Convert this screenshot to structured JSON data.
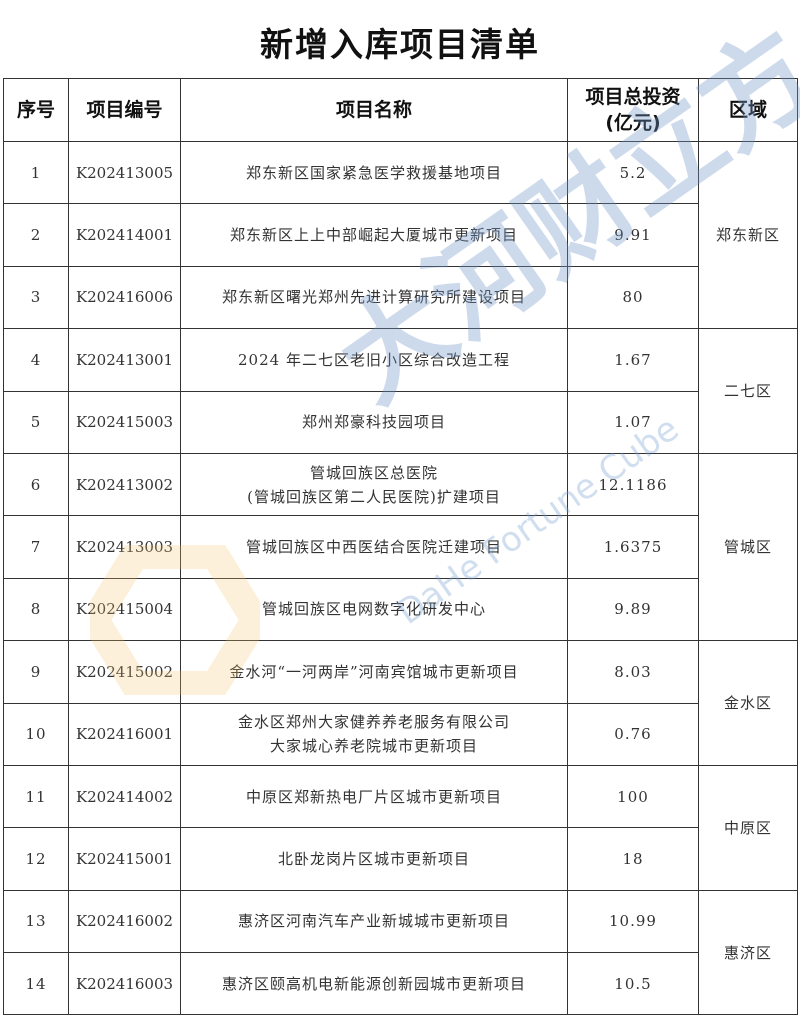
{
  "title": "新增入库项目清单",
  "headers": {
    "no": "序号",
    "code": "项目编号",
    "name": "项目名称",
    "invest_line1": "项目总投资",
    "invest_line2": "(亿元)",
    "region": "区域"
  },
  "rows": [
    {
      "no": "1",
      "code": "K202413005",
      "name": [
        "郑东新区国家紧急医学救援基地项目"
      ],
      "invest": "5.2"
    },
    {
      "no": "2",
      "code": "K202414001",
      "name": [
        "郑东新区上上中部崛起大厦城市更新项目"
      ],
      "invest": "9.91"
    },
    {
      "no": "3",
      "code": "K202416006",
      "name": [
        "郑东新区曙光郑州先进计算研究所建设项目"
      ],
      "invest": "80"
    },
    {
      "no": "4",
      "code": "K202413001",
      "name": [
        "2024 年二七区老旧小区综合改造工程"
      ],
      "invest": "1.67"
    },
    {
      "no": "5",
      "code": "K202415003",
      "name": [
        "郑州郑豪科技园项目"
      ],
      "invest": "1.07"
    },
    {
      "no": "6",
      "code": "K202413002",
      "name": [
        "管城回族区总医院",
        "(管城回族区第二人民医院)扩建项目"
      ],
      "invest": "12.1186"
    },
    {
      "no": "7",
      "code": "K202413003",
      "name": [
        "管城回族区中西医结合医院迁建项目"
      ],
      "invest": "1.6375"
    },
    {
      "no": "8",
      "code": "K202415004",
      "name": [
        "管城回族区电网数字化研发中心"
      ],
      "invest": "9.89"
    },
    {
      "no": "9",
      "code": "K202415002",
      "name": [
        "金水河“一河两岸”河南宾馆城市更新项目"
      ],
      "invest": "8.03"
    },
    {
      "no": "10",
      "code": "K202416001",
      "name": [
        "金水区郑州大家健养养老服务有限公司",
        "大家城心养老院城市更新项目"
      ],
      "invest": "0.76"
    },
    {
      "no": "11",
      "code": "K202414002",
      "name": [
        "中原区郑新热电厂片区城市更新项目"
      ],
      "invest": "100"
    },
    {
      "no": "12",
      "code": "K202415001",
      "name": [
        "北卧龙岗片区城市更新项目"
      ],
      "invest": "18"
    },
    {
      "no": "13",
      "code": "K202416002",
      "name": [
        "惠济区河南汽车产业新城城市更新项目"
      ],
      "invest": "10.99"
    },
    {
      "no": "14",
      "code": "K202416003",
      "name": [
        "惠济区颐高机电新能源创新园城市更新项目"
      ],
      "invest": "10.5"
    }
  ],
  "regions": [
    {
      "name": "郑东新区",
      "start": 1,
      "span": 3
    },
    {
      "name": "二七区",
      "start": 4,
      "span": 2
    },
    {
      "name": "管城区",
      "start": 6,
      "span": 3
    },
    {
      "name": "金水区",
      "start": 9,
      "span": 2
    },
    {
      "name": "中原区",
      "start": 11,
      "span": 2
    },
    {
      "name": "惠济区",
      "start": 13,
      "span": 2
    }
  ],
  "watermark": {
    "logo_cn": "大河财立方",
    "logo_en": "DaHe Fortune Cube",
    "color": "#6e96c8",
    "hex_color": "#f5c26b"
  }
}
